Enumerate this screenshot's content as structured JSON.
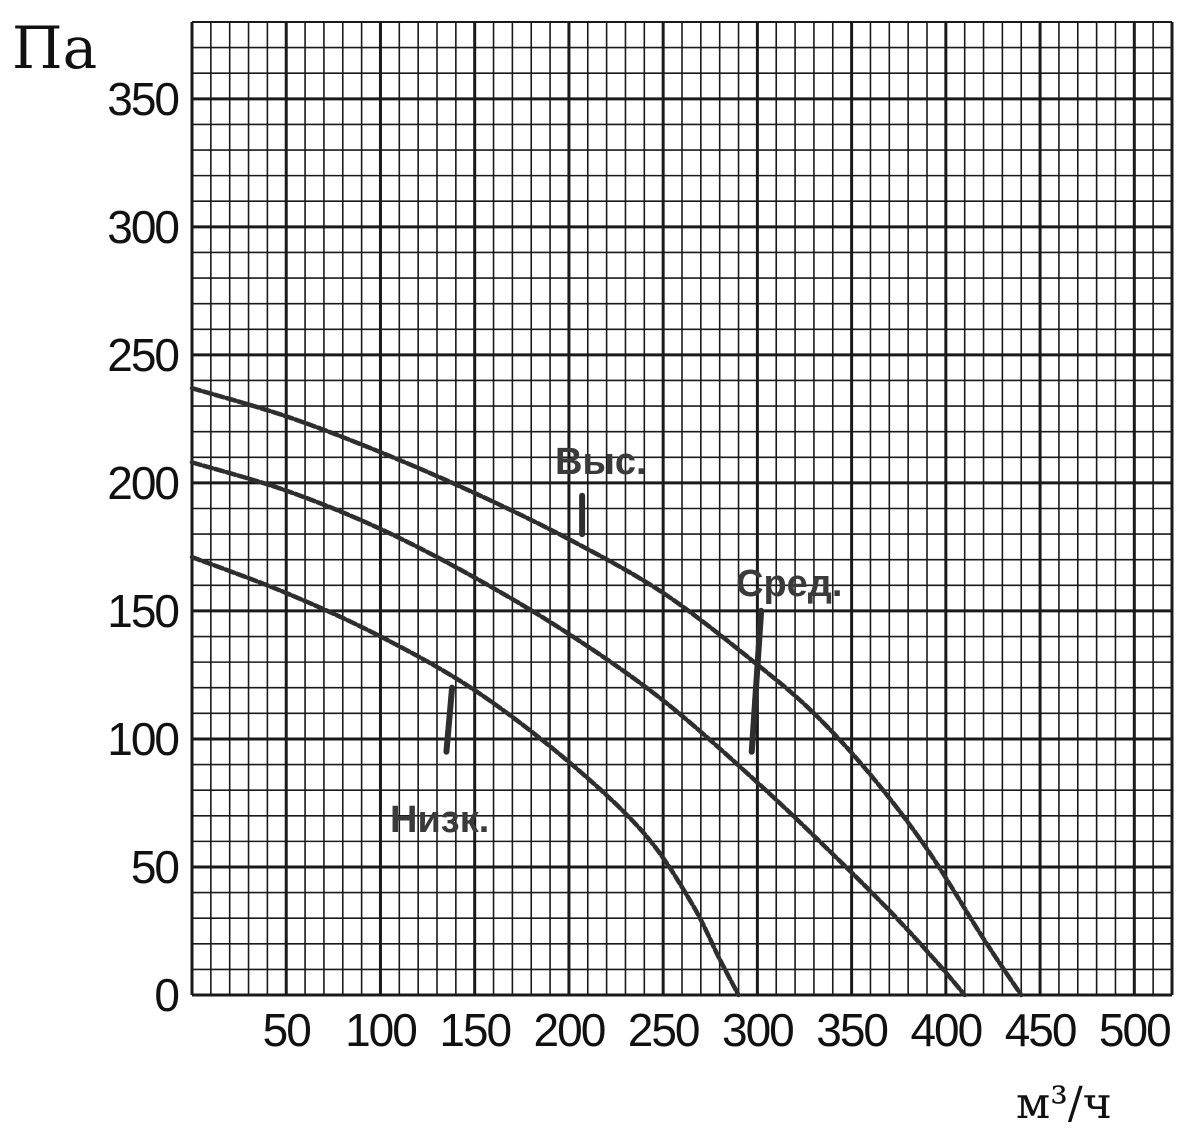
{
  "chart_data": {
    "type": "line",
    "title": "",
    "ylabel": "Па",
    "xlabel": "м³/ч",
    "xlim": [
      0,
      520
    ],
    "ylim": [
      0,
      380
    ],
    "x_ticks": [
      50,
      100,
      150,
      200,
      250,
      300,
      350,
      400,
      450,
      500
    ],
    "y_ticks": [
      0,
      50,
      100,
      150,
      200,
      250,
      300,
      350
    ],
    "grid": true,
    "series": [
      {
        "name": "Выс.",
        "x": [
          0,
          50,
          100,
          150,
          200,
          250,
          300,
          330,
          360,
          390,
          420,
          440
        ],
        "y": [
          237,
          226,
          212,
          196,
          178,
          157,
          129,
          110,
          86,
          57,
          22,
          0
        ]
      },
      {
        "name": "Сред.",
        "x": [
          0,
          50,
          100,
          150,
          200,
          250,
          300,
          340,
          370,
          395,
          410
        ],
        "y": [
          208,
          197,
          182,
          163,
          141,
          115,
          83,
          55,
          33,
          13,
          0
        ]
      },
      {
        "name": "Низк.",
        "x": [
          0,
          50,
          100,
          150,
          200,
          240,
          265,
          280,
          290
        ],
        "y": [
          171,
          157,
          140,
          119,
          91,
          63,
          36,
          14,
          0
        ]
      }
    ],
    "colors": {
      "grid": "#1a1a1a",
      "curve": "#2e2e2e",
      "leader": "#2e2e2e"
    }
  }
}
